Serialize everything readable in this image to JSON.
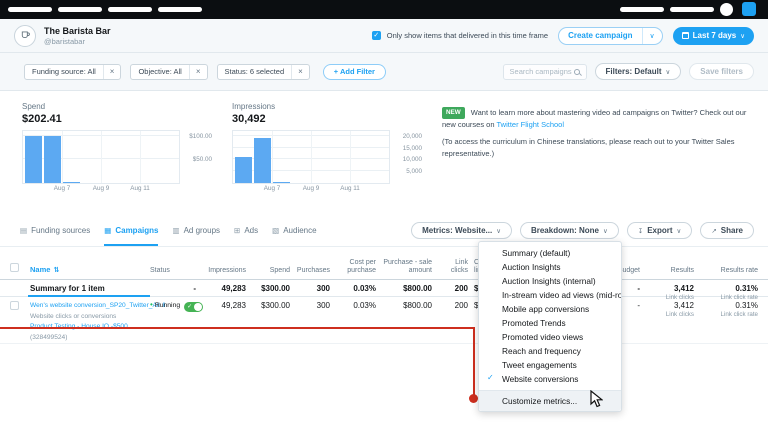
{
  "account": {
    "name": "The Barista Bar",
    "handle": "@baristabar"
  },
  "header": {
    "delivered_filter_label": "Only show items that delivered in this time frame",
    "delivered_filter_checked": true,
    "create_campaign_label": "Create campaign",
    "date_range_label": "Last 7 days"
  },
  "filters": {
    "chips": [
      "Funding source: All",
      "Objective: All",
      "Status: 6 selected"
    ],
    "add_filter_label": "+ Add Filter",
    "search_placeholder": "Search campaigns",
    "filters_preset_label": "Filters: Default",
    "save_filters_label": "Save filters"
  },
  "promo": {
    "badge": "NEW",
    "text1": "Want to learn more about mastering video ad campaigns on Twitter? Check out our new courses on",
    "link": "Twitter Flight School",
    "text2": "(To access the curriculum in Chinese translations, please reach out to your Twitter Sales representative.)"
  },
  "tabs": [
    "Funding sources",
    "Campaigns",
    "Ad groups",
    "Ads",
    "Audience"
  ],
  "active_tab": "Campaigns",
  "toolbar": {
    "metrics_label": "Metrics: Website...",
    "breakdown_label": "Breakdown: None",
    "export_label": "Export",
    "share_label": "Share"
  },
  "metrics_menu": {
    "items": [
      "Summary (default)",
      "Auction Insights",
      "Auction Insights (internal)",
      "In-stream video ad views (mid-roll)",
      "Mobile app conversions",
      "Promoted Trends",
      "Promoted video views",
      "Reach and frequency",
      "Tweet engagements",
      "Website conversions"
    ],
    "checked_item": "Website conversions",
    "footer": "Customize metrics..."
  },
  "table": {
    "columns": [
      "Name",
      "Status",
      "Impressions",
      "Spend",
      "Purchases",
      "Cost per purchase",
      "Purchase - sale amount",
      "Link clicks",
      "Cost per link click",
      "Budget",
      "Results",
      "Results rate"
    ],
    "summary": {
      "label": "Summary for 1 item",
      "status": "-",
      "impressions": "49,283",
      "spend": "$300.00",
      "purchases": "300",
      "cost_per_purchase": "0.03%",
      "purchase_sale_amount": "$800.00",
      "link_clicks": "200",
      "cost_per_link_click": "$2",
      "budget": "-",
      "results": "3,412",
      "results_sub": "Link clicks",
      "results_rate": "0.31%",
      "results_rate_sub": "Link click rate"
    },
    "row": {
      "name": "Wen's website conversion_SP20_Twitter_All",
      "status": "Running",
      "objective": "Website clicks or conversions",
      "funding_source": "Product Testing - House IO -$500",
      "funding_id": "(328499524)",
      "impressions": "49,283",
      "spend": "$300.00",
      "purchases": "300",
      "cost_per_purchase": "0.03%",
      "purchase_sale_amount": "$800.00",
      "link_clicks": "200",
      "cost_per_link_click": "$2",
      "budget": "-",
      "results": "3,412",
      "results_sub": "Link clicks",
      "results_rate": "0.31%",
      "results_rate_sub": "Link click rate"
    }
  },
  "chart_data": [
    {
      "type": "bar",
      "title": "Spend",
      "total_label": "$202.41",
      "x_estimated": [
        "Aug 6",
        "Aug 7",
        "Aug 8"
      ],
      "values": [
        100.0,
        100.0,
        2.41
      ],
      "ylim": [
        0,
        110
      ],
      "yticks": [
        {
          "value": 50,
          "label": "$50.00"
        },
        {
          "value": 100,
          "label": "$100.00"
        }
      ],
      "xticks": [
        "Aug 7",
        "Aug 9",
        "Aug 11"
      ],
      "bar_color": "#5ca9f2",
      "grid": true,
      "legend": "none"
    },
    {
      "type": "bar",
      "title": "Impressions",
      "total_label": "30,492",
      "x_estimated": [
        "Aug 6",
        "Aug 7",
        "Aug 8"
      ],
      "values": [
        11200,
        19000,
        292
      ],
      "ylim": [
        0,
        22000
      ],
      "yticks": [
        {
          "value": 5000,
          "label": "5,000"
        },
        {
          "value": 10000,
          "label": "10,000"
        },
        {
          "value": 15000,
          "label": "15,000"
        },
        {
          "value": 20000,
          "label": "20,000"
        }
      ],
      "xticks": [
        "Aug 7",
        "Aug 9",
        "Aug 11"
      ],
      "bar_color": "#5ca9f2",
      "grid": true,
      "legend": "none"
    }
  ],
  "colors": {
    "accent_blue": "#1da1f2",
    "bar_blue": "#5ca9f2",
    "badge_green": "#3ea85c",
    "toggle_green": "#45b354",
    "running_green": "#17bf63",
    "annotation_red": "#ce2f1f"
  },
  "icons": {
    "check": "✓",
    "close": "×",
    "chevron_down": "∨",
    "sort": "⇅",
    "pause": "‖",
    "export": "↧",
    "share": "↗",
    "dot": "•",
    "tab_funding": "▤",
    "tab_campaigns": "▦",
    "tab_adgroups": "▥",
    "tab_ads": "⊞",
    "tab_audience": "▧"
  }
}
